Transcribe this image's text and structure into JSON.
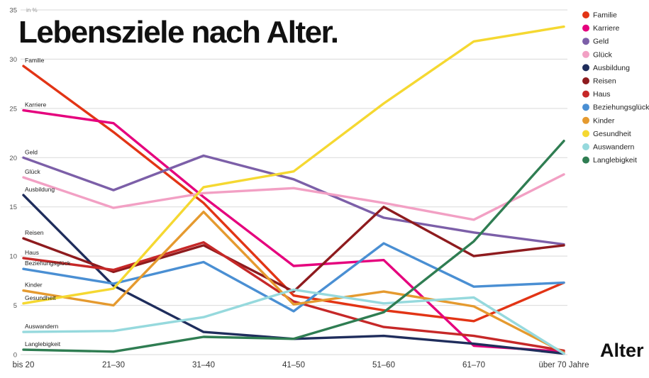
{
  "title": "Lebensziele nach Alter.",
  "axes": {
    "y_unit_label": "in %",
    "x_axis_title": "Alter"
  },
  "chart_data": {
    "type": "line",
    "title": "Lebensziele nach Alter.",
    "xlabel": "Alter",
    "ylabel": "in %",
    "ylim": [
      0,
      35
    ],
    "y_ticks": [
      0,
      5,
      10,
      15,
      20,
      25,
      30,
      35
    ],
    "grid": "horizontal",
    "legend_position": "top-right",
    "categories": [
      "bis 20",
      "21–30",
      "31–40",
      "41–50",
      "51–60",
      "61–70",
      "über 70 Jahre"
    ],
    "series": [
      {
        "name": "Familie",
        "color": "#e23415",
        "values": [
          29.3,
          22.6,
          15.4,
          6.0,
          4.5,
          3.4,
          7.3
        ]
      },
      {
        "name": "Karriere",
        "color": "#e5007d",
        "values": [
          24.8,
          23.5,
          16.0,
          9.0,
          9.6,
          0.9,
          0.3
        ]
      },
      {
        "name": "Geld",
        "color": "#7c5fa8",
        "values": [
          20.0,
          16.7,
          20.2,
          17.8,
          13.9,
          12.4,
          11.2
        ]
      },
      {
        "name": "Glück",
        "color": "#f2a0c4",
        "values": [
          18.0,
          14.9,
          16.4,
          16.9,
          15.4,
          13.7,
          18.3
        ]
      },
      {
        "name": "Ausbildung",
        "color": "#1f2d5c",
        "values": [
          16.2,
          7.0,
          2.3,
          1.6,
          1.9,
          1.1,
          0.1
        ]
      },
      {
        "name": "Reisen",
        "color": "#8e1b1e",
        "values": [
          11.8,
          8.4,
          11.1,
          6.4,
          15.0,
          10.0,
          11.1
        ]
      },
      {
        "name": "Haus",
        "color": "#c62828",
        "values": [
          9.8,
          8.6,
          11.4,
          5.4,
          2.8,
          1.9,
          0.4
        ]
      },
      {
        "name": "Beziehungsglück",
        "color": "#4a8fd3",
        "values": [
          8.7,
          7.2,
          9.4,
          4.4,
          11.3,
          6.9,
          7.3
        ]
      },
      {
        "name": "Kinder",
        "color": "#e59a2f",
        "values": [
          6.5,
          5.0,
          14.5,
          5.1,
          6.4,
          4.9,
          0.2
        ]
      },
      {
        "name": "Gesundheit",
        "color": "#f5d831",
        "values": [
          5.2,
          6.7,
          17.0,
          18.6,
          25.5,
          31.8,
          33.3
        ]
      },
      {
        "name": "Auswandern",
        "color": "#96d9dd",
        "values": [
          2.3,
          2.4,
          3.8,
          6.6,
          5.2,
          5.8,
          0.1
        ]
      },
      {
        "name": "Langlebigkeit",
        "color": "#2f7d52",
        "values": [
          0.5,
          0.3,
          1.8,
          1.6,
          4.3,
          11.5,
          21.7
        ]
      }
    ]
  }
}
